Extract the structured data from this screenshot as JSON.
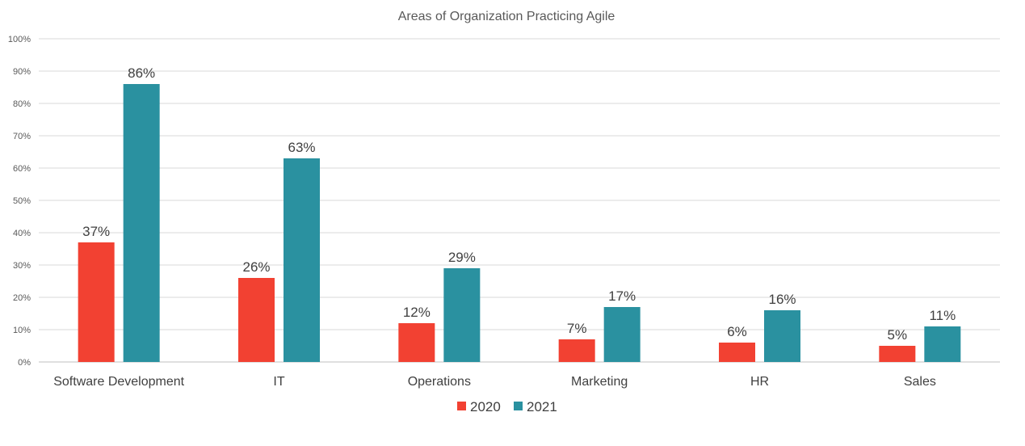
{
  "chart_data": {
    "type": "bar",
    "title": "Areas of Organization Practicing Agile",
    "xlabel": "",
    "ylabel": "",
    "categories": [
      "Software Development",
      "IT",
      "Operations",
      "Marketing",
      "HR",
      "Sales"
    ],
    "series": [
      {
        "name": "2020",
        "color": "#f24132",
        "values": [
          37,
          26,
          12,
          7,
          6,
          5
        ],
        "labels": [
          "37%",
          "26%",
          "12%",
          "7%",
          "6%",
          "5%"
        ]
      },
      {
        "name": "2021",
        "color": "#2a91a0",
        "values": [
          86,
          63,
          29,
          17,
          16,
          11
        ],
        "labels": [
          "86%",
          "63%",
          "29%",
          "17%",
          "16%",
          "11%"
        ]
      }
    ],
    "ylim": [
      0,
      100
    ],
    "yticks": [
      0,
      10,
      20,
      30,
      40,
      50,
      60,
      70,
      80,
      90,
      100
    ],
    "ytick_labels": [
      "0%",
      "10%",
      "20%",
      "30%",
      "40%",
      "50%",
      "60%",
      "70%",
      "80%",
      "90%",
      "100%"
    ],
    "grid": true,
    "legend_position": "bottom"
  }
}
